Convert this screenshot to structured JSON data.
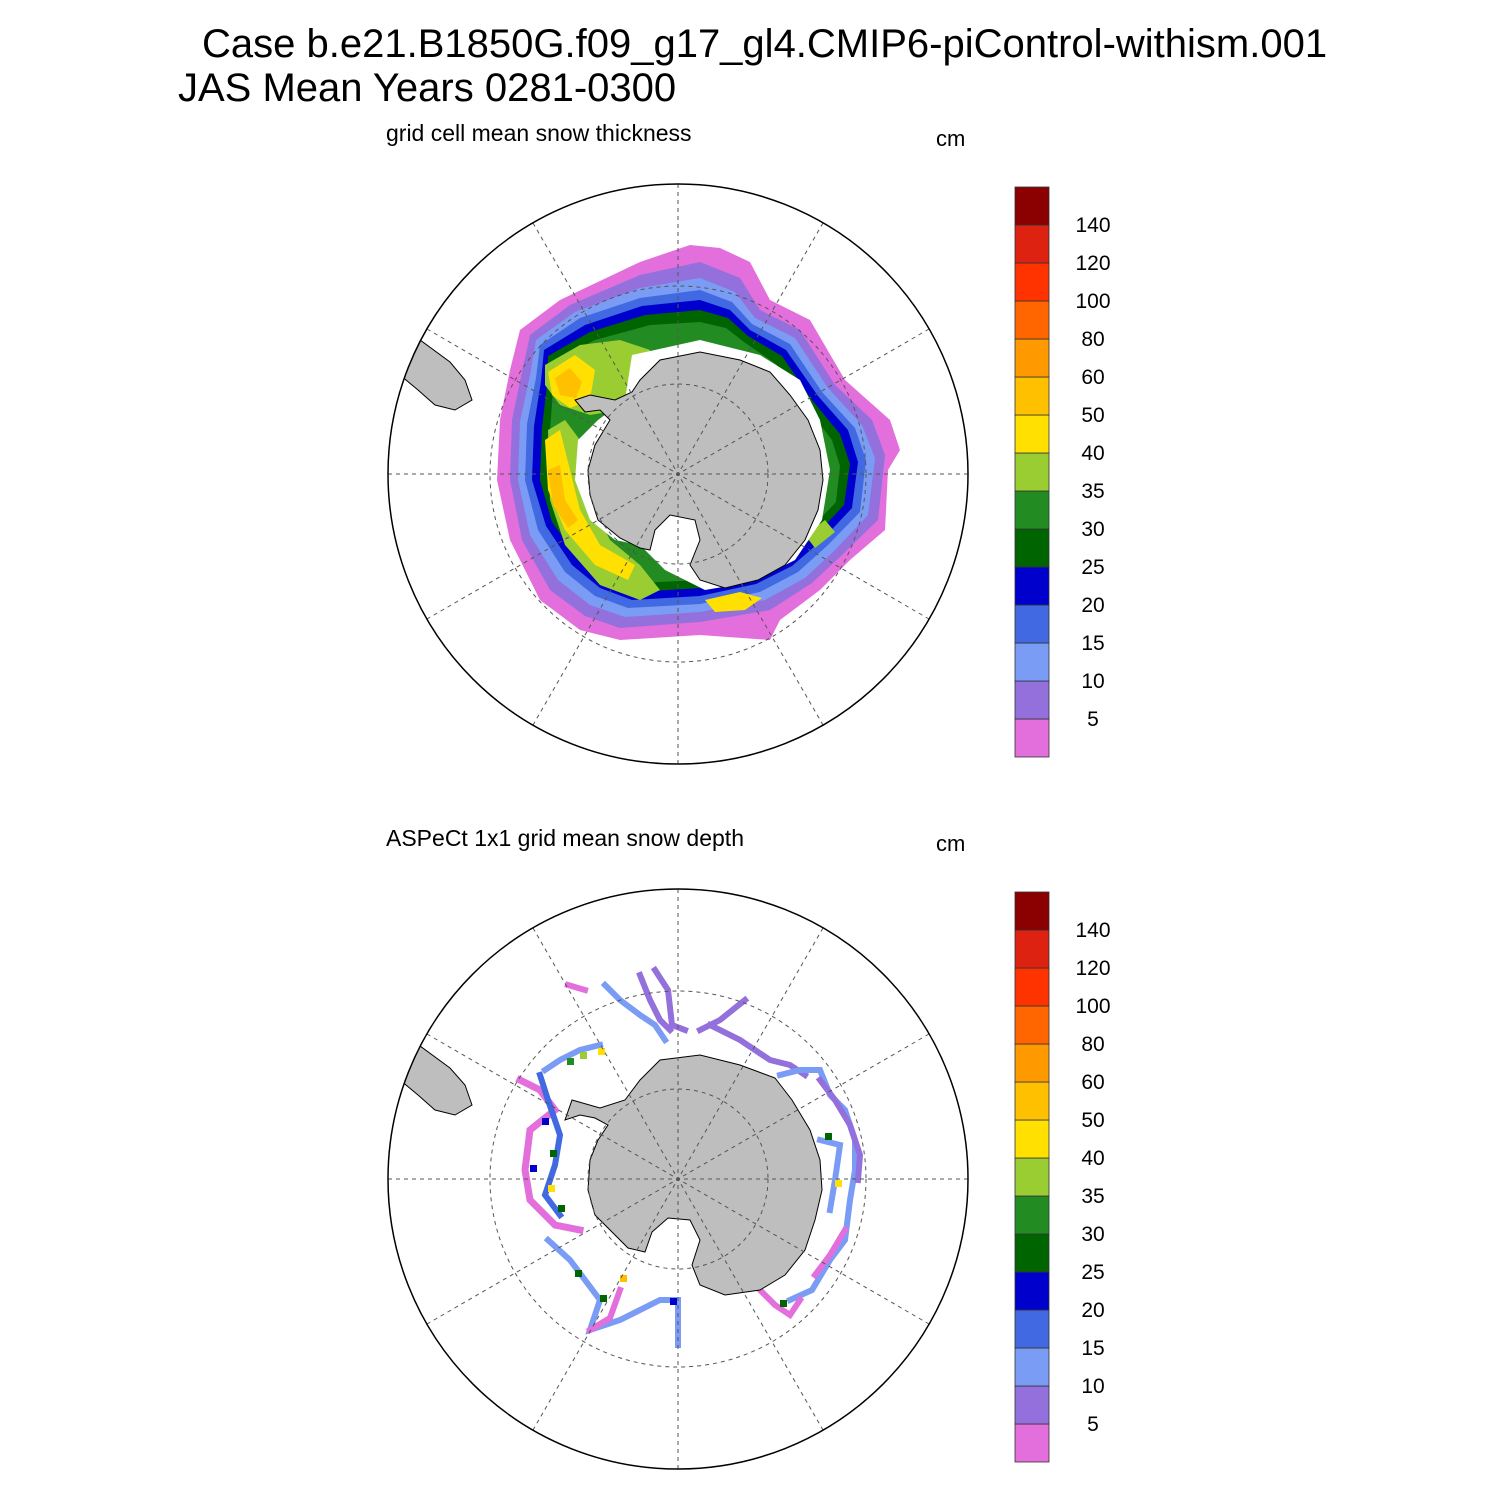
{
  "title": {
    "line1": "Case b.e21.B1850G.f09_g17_gl4.CMIP6-piControl-withism.001",
    "line2": "JAS Mean   Years 0281-0300"
  },
  "panels": [
    {
      "name": "model",
      "title": "grid cell mean snow thickness",
      "units": "cm"
    },
    {
      "name": "observed",
      "title": "ASPeCt 1x1 grid mean snow depth",
      "units": "cm"
    }
  ],
  "colorbar": {
    "labels": [
      "5",
      "10",
      "15",
      "20",
      "25",
      "30",
      "35",
      "40",
      "50",
      "60",
      "80",
      "100",
      "120",
      "140"
    ],
    "colors": [
      "#E36FDD",
      "#9370DB",
      "#7B9CF5",
      "#4169E1",
      "#0000CD",
      "#006400",
      "#228B22",
      "#9ACD32",
      "#FFE000",
      "#FFC000",
      "#FF9900",
      "#FF6600",
      "#FF3300",
      "#DD2211",
      "#8B0000"
    ]
  },
  "map_colors": {
    "land": "#BEBEBE",
    "ocean": "#FFFFFF"
  }
}
